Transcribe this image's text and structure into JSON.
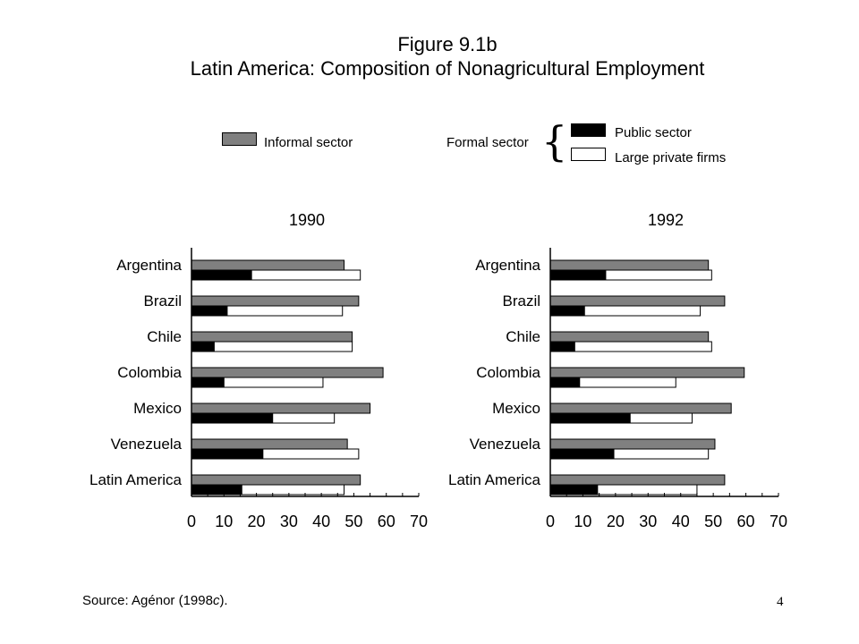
{
  "header": {
    "title": "Figure 9.1b",
    "subtitle": "Latin America:  Composition of Nonagricultural Employment"
  },
  "legend": {
    "informal_label": "Informal sector",
    "formal_label": "Formal sector",
    "public_label": "Public sector",
    "private_label": "Large private firms",
    "colors": {
      "informal": "#808080",
      "public": "#000000",
      "private": "#ffffff"
    }
  },
  "footer": {
    "source_prefix": "Source: Agénor (1998",
    "source_italic": "c",
    "source_suffix": ").",
    "page_number": "4"
  },
  "chart_data": [
    {
      "type": "bar",
      "orientation": "horizontal",
      "title": "1990",
      "categories": [
        "Argentina",
        "Brazil",
        "Chile",
        "Colombia",
        "Mexico",
        "Venezuela",
        "Latin America"
      ],
      "series": [
        {
          "name": "Informal sector",
          "values": [
            47,
            51.5,
            49.5,
            59,
            55,
            48,
            52
          ]
        },
        {
          "name": "Public sector",
          "values": [
            18.5,
            11,
            7,
            10,
            25,
            22,
            15.5
          ]
        },
        {
          "name": "Large private firms",
          "values": [
            33.5,
            35.5,
            42.5,
            30.5,
            19,
            29.5,
            31.5
          ]
        }
      ],
      "stacked_series": [
        "Public sector",
        "Large private firms"
      ],
      "xlim": [
        0,
        70
      ],
      "xticks": [
        "0",
        "10",
        "20",
        "30",
        "40",
        "50",
        "60",
        "70"
      ]
    },
    {
      "type": "bar",
      "orientation": "horizontal",
      "title": "1992",
      "categories": [
        "Argentina",
        "Brazil",
        "Chile",
        "Colombia",
        "Mexico",
        "Venezuela",
        "Latin America"
      ],
      "series": [
        {
          "name": "Informal sector",
          "values": [
            48.5,
            53.5,
            48.5,
            59.5,
            55.5,
            50.5,
            53.5
          ]
        },
        {
          "name": "Public sector",
          "values": [
            17,
            10.5,
            7.5,
            9,
            24.5,
            19.5,
            14.5
          ]
        },
        {
          "name": "Large private firms",
          "values": [
            32.5,
            35.5,
            42,
            29.5,
            19,
            29,
            30.5
          ]
        }
      ],
      "stacked_series": [
        "Public sector",
        "Large private firms"
      ],
      "xlim": [
        0,
        70
      ],
      "xticks": [
        "0",
        "10",
        "20",
        "30",
        "40",
        "50",
        "60",
        "70"
      ]
    }
  ]
}
